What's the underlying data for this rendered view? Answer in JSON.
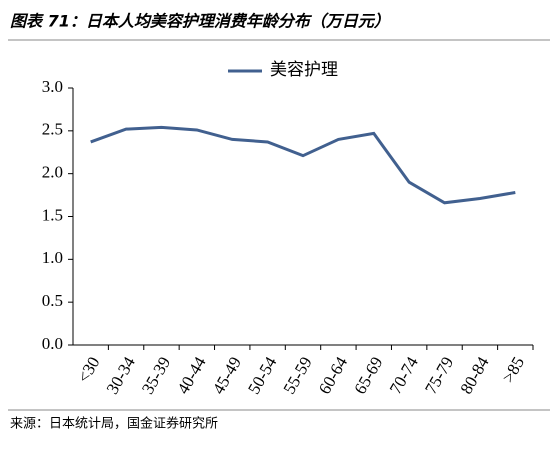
{
  "chart_data": {
    "type": "line",
    "title": "图表 71：日本人均美容护理消费年龄分布（万日元）",
    "source": "来源：日本统计局，国金证券研究所",
    "categories": [
      "<30",
      "30-34",
      "35-39",
      "40-44",
      "45-49",
      "50-54",
      "55-59",
      "60-64",
      "65-69",
      "70-74",
      "75-79",
      "80-84",
      ">85"
    ],
    "series": [
      {
        "name": "美容护理",
        "color": "#41608f",
        "values": [
          2.37,
          2.52,
          2.54,
          2.51,
          2.4,
          2.37,
          2.21,
          2.4,
          2.47,
          1.9,
          1.66,
          1.71,
          1.78
        ]
      }
    ],
    "ylim": [
      0,
      3
    ],
    "yticks": [
      {
        "value": 0,
        "label": "0.0"
      },
      {
        "value": 0.5,
        "label": "0.5"
      },
      {
        "value": 1,
        "label": "1.0"
      },
      {
        "value": 1.5,
        "label": "1.5"
      },
      {
        "value": 2,
        "label": "2.0"
      },
      {
        "value": 2.5,
        "label": "2.5"
      },
      {
        "value": 3,
        "label": "3.0"
      }
    ],
    "legend": "top"
  }
}
